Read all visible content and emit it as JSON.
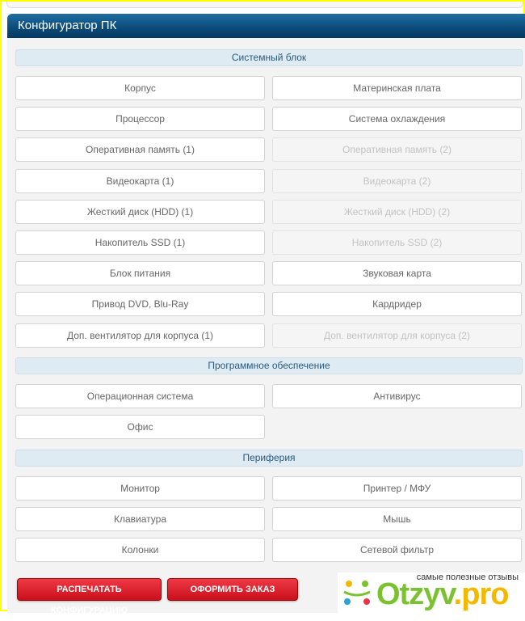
{
  "header": {
    "title": "Конфигуратор ПК"
  },
  "sections": [
    {
      "title": "Системный блок",
      "items": [
        {
          "label": "Корпус",
          "enabled": true
        },
        {
          "label": "Материнская плата",
          "enabled": true
        },
        {
          "label": "Процессор",
          "enabled": true
        },
        {
          "label": "Система охлаждения",
          "enabled": true
        },
        {
          "label": "Оперативная память (1)",
          "enabled": true
        },
        {
          "label": "Оперативная память (2)",
          "enabled": false
        },
        {
          "label": "Видеокарта (1)",
          "enabled": true
        },
        {
          "label": "Видеокарта (2)",
          "enabled": false
        },
        {
          "label": "Жесткий диск (HDD) (1)",
          "enabled": true
        },
        {
          "label": "Жесткий диск (HDD) (2)",
          "enabled": false
        },
        {
          "label": "Накопитель SSD (1)",
          "enabled": true
        },
        {
          "label": "Накопитель SSD (2)",
          "enabled": false
        },
        {
          "label": "Блок питания",
          "enabled": true
        },
        {
          "label": "Звуковая карта",
          "enabled": true
        },
        {
          "label": "Привод DVD, Blu-Ray",
          "enabled": true
        },
        {
          "label": "Кардридер",
          "enabled": true
        },
        {
          "label": "Доп. вентилятор для корпуса (1)",
          "enabled": true
        },
        {
          "label": "Доп. вентилятор для корпуса (2)",
          "enabled": false
        }
      ]
    },
    {
      "title": "Программное обеспечение",
      "items": [
        {
          "label": "Операционная система",
          "enabled": true
        },
        {
          "label": "Антивирус",
          "enabled": true
        },
        {
          "label": "Офис",
          "enabled": true
        }
      ]
    },
    {
      "title": "Периферия",
      "items": [
        {
          "label": "Монитор",
          "enabled": true
        },
        {
          "label": "Принтер / МФУ",
          "enabled": true
        },
        {
          "label": "Клавиатура",
          "enabled": true
        },
        {
          "label": "Мышь",
          "enabled": true
        },
        {
          "label": "Колонки",
          "enabled": true
        },
        {
          "label": "Сетевой фильтр",
          "enabled": true
        }
      ]
    }
  ],
  "actions": {
    "print": "РАСПЕЧАТАТЬ КОНФИГУРАЦИЮ",
    "order": "ОФОРМИТЬ ЗАКАЗ"
  },
  "watermark": {
    "tagline": "самые полезные отзывы",
    "brand": "Otzyv.pro"
  }
}
